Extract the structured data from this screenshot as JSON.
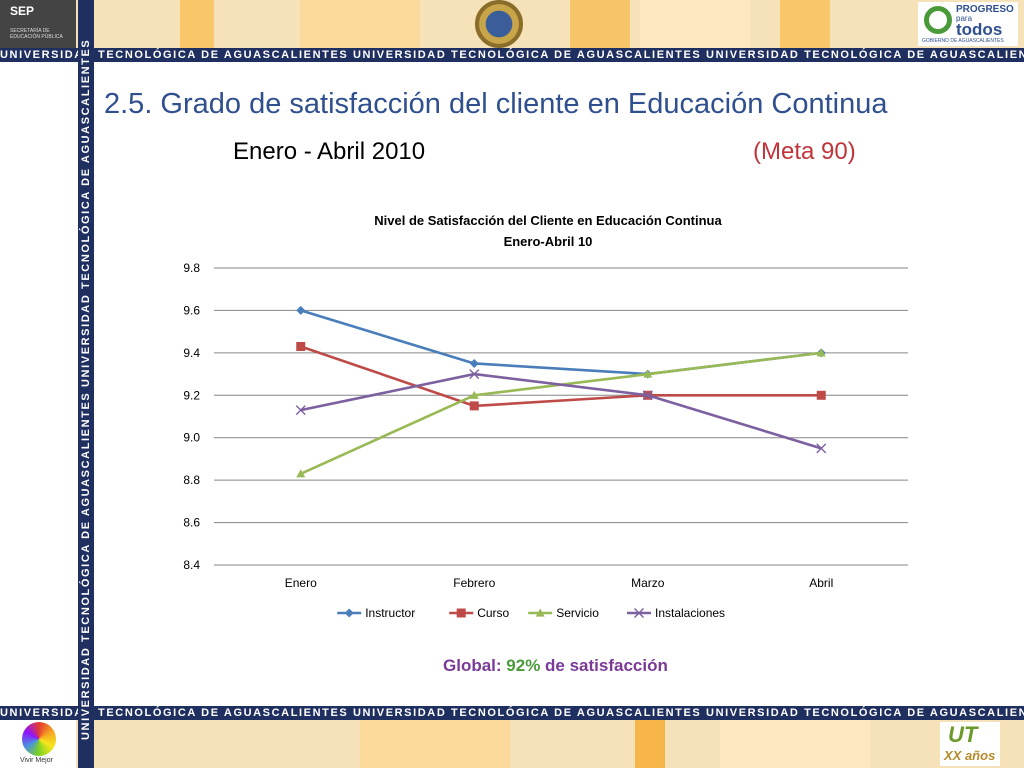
{
  "header": {
    "sep_label": "SEP",
    "sep_subtitle": "SECRETARÍA DE EDUCACIÓN PÚBLICA",
    "progreso_line1": "PROGRESO",
    "progreso_line2": "para",
    "progreso_line3": "todos",
    "progreso_line4": "GOBIERNO DE AGUASCALIENTES"
  },
  "stripe_text": "UNIVERSIDAD TECNOLÓGICA DE AGUASCALIENTES  UNIVERSIDAD TECNOLÓGICA DE AGUASCALIENTES  UNIVERSIDAD TECNOLÓGICA DE AGUASCALIENTES",
  "stripe_text_left": "UNIVERSIDAD TECNOLÓGICA DE AGUASCALIENTES  UNIVERSIDAD TECNOLÓGICA DE AGUASCALIENTES",
  "slide": {
    "title": "2.5. Grado de satisfacción del cliente en Educación Continua",
    "period": "Enero -  Abril 2010",
    "goal": "(Meta 90)",
    "global_label": "Global: ",
    "global_pct": "92%",
    "global_suffix": " de satisfacción"
  },
  "footer": {
    "vivir_label": "Vivir Mejor",
    "ut_label": "UT",
    "xx_label": "XX años"
  },
  "chart_data": {
    "type": "line",
    "title": "Nivel de Satisfacción del Cliente en Educación Continua",
    "subtitle": "Enero-Abril 10",
    "categories": [
      "Enero",
      "Febrero",
      "Marzo",
      "Abril"
    ],
    "ylim": [
      8.4,
      9.8
    ],
    "yticks": [
      "8.4",
      "8.6",
      "8.8",
      "9.0",
      "9.2",
      "9.4",
      "9.6",
      "9.8"
    ],
    "grid": true,
    "legend_position": "bottom",
    "series": [
      {
        "name": "Instructor",
        "color": "#4a7ebb",
        "marker": "diamond",
        "values": [
          9.6,
          9.35,
          9.3,
          9.4
        ]
      },
      {
        "name": "Curso",
        "color": "#be4b48",
        "marker": "square",
        "values": [
          9.43,
          9.15,
          9.2,
          9.2
        ]
      },
      {
        "name": "Servicio",
        "color": "#98b954",
        "marker": "triangle",
        "values": [
          8.83,
          9.2,
          9.3,
          9.4
        ]
      },
      {
        "name": "Instalaciones",
        "color": "#7d60a0",
        "marker": "x",
        "values": [
          9.13,
          9.3,
          9.2,
          8.95
        ]
      }
    ]
  }
}
